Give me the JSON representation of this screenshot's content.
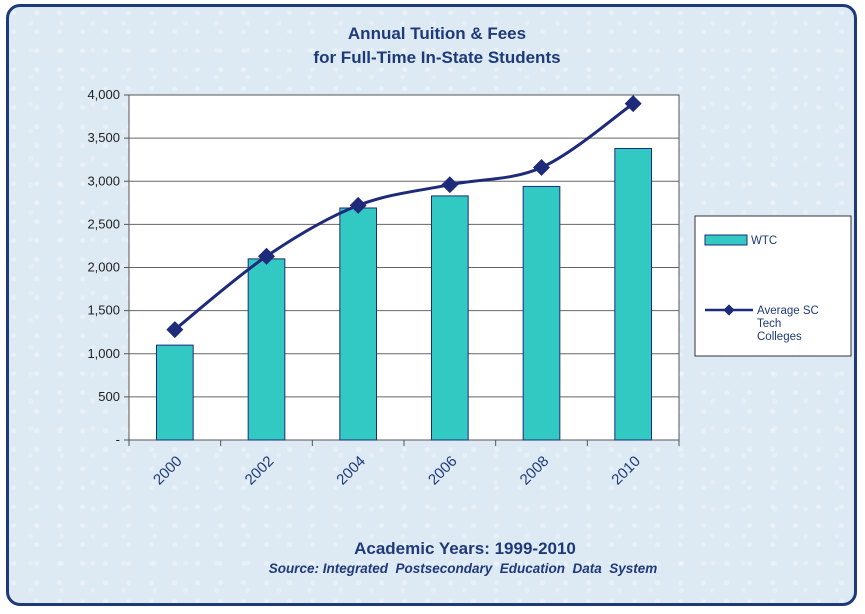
{
  "chart_data": {
    "type": "bar",
    "title_lines": [
      "Annual Tuition & Fees",
      "for Full-Time In-State Students"
    ],
    "categories": [
      "2000",
      "2002",
      "2004",
      "2006",
      "2008",
      "2010"
    ],
    "series": [
      {
        "name": "WTC",
        "type": "bar",
        "values": [
          1100,
          2100,
          2690,
          2830,
          2940,
          3380
        ],
        "color": "#33c9c3"
      },
      {
        "name": "Average SC Tech Colleges",
        "name_lines": [
          "Average SC",
          "Tech",
          "Colleges"
        ],
        "type": "line",
        "values": [
          1280,
          2130,
          2720,
          2960,
          3160,
          3900
        ],
        "color": "#1e2a7a"
      }
    ],
    "yticks": [
      "-",
      "500",
      "1,000",
      "1,500",
      "2,000",
      "2,500",
      "3,000",
      "3,500",
      "4,000"
    ],
    "ylim": [
      0,
      4000
    ],
    "grid": true,
    "legend_position": "right",
    "xlabel": "Academic Years: 1999-2010",
    "source": "Source: Integrated  Postsecondary  Education  Data  System"
  }
}
